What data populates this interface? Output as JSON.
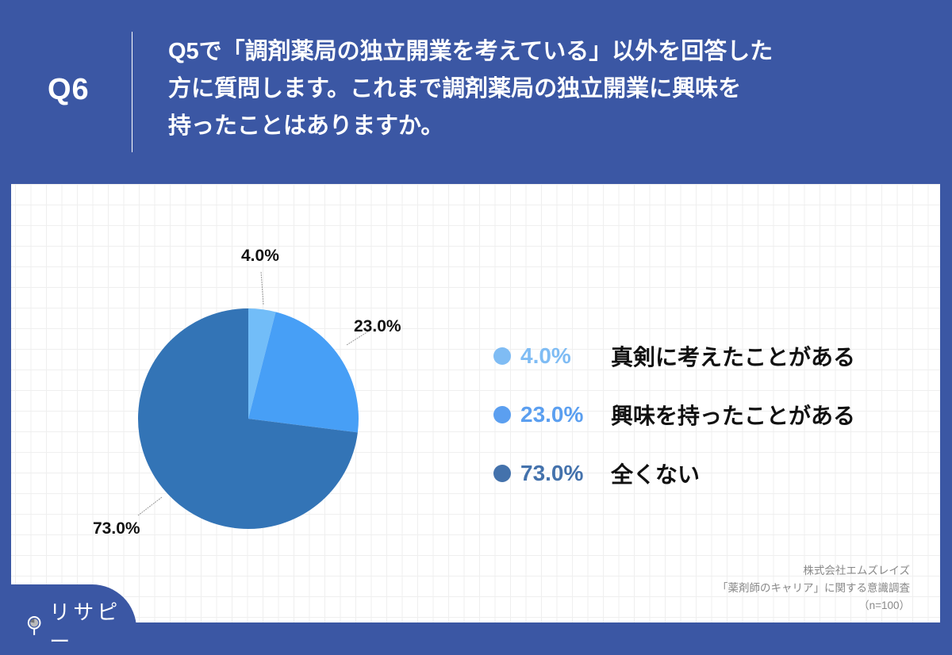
{
  "header": {
    "question_number": "Q6",
    "question_text_lines": [
      "Q5で「調剤薬局の独立開業を考えている」以外を回答した",
      "方に質問します。これまで調剤薬局の独立開業に興味を",
      "持ったことはありますか。"
    ]
  },
  "chart_data": {
    "type": "pie",
    "title": "Q5で「調剤薬局の独立開業を考えている」以外を回答した方に質問します。これまで調剤薬局の独立開業に興味を持ったことはありますか。",
    "categories": [
      "真剣に考えたことがある",
      "興味を持ったことがある",
      "全くない"
    ],
    "values": [
      4.0,
      23.0,
      73.0
    ],
    "labels": [
      "4.0%",
      "23.0%",
      "73.0%"
    ],
    "colors": [
      "#72bdf8",
      "#479ff6",
      "#3374b6"
    ],
    "start_angle": "12 o'clock, clockwise",
    "legend_position": "right"
  },
  "legend": {
    "items": [
      {
        "pct": "4.0%",
        "label": "真剣に考えたことがある",
        "color": "#7fbcf4"
      },
      {
        "pct": "23.0%",
        "label": "興味を持ったことがある",
        "color": "#5b9ff0"
      },
      {
        "pct": "73.0%",
        "label": "全くない",
        "color": "#4472ac"
      }
    ]
  },
  "source": {
    "line1": "株式会社エムズレイズ",
    "line2": "「薬剤師のキャリア」に関する意識調査",
    "line3": "（n=100）"
  },
  "brand": {
    "logo_text": "リサピー",
    "primary_color": "#3b57a4"
  }
}
